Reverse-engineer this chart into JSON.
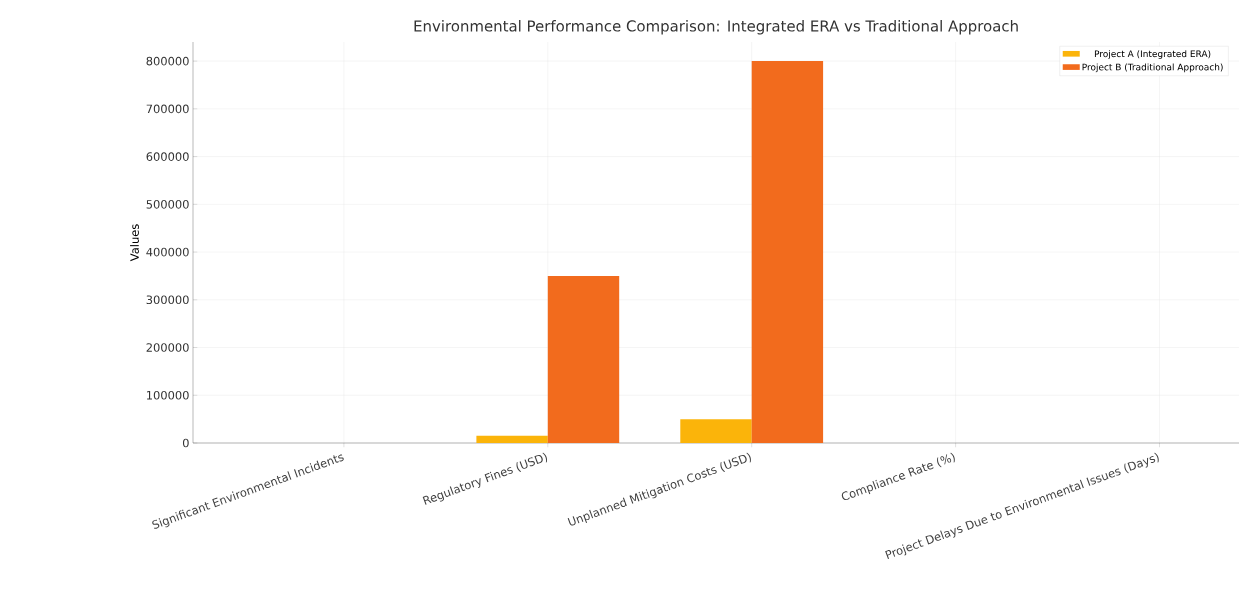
{
  "chart_data": {
    "type": "bar",
    "title": "Environmental Performance Comparison: Integrated ERA vs Traditional Approach",
    "ylabel": "Values",
    "categories": [
      "Significant Environmental Incidents",
      "Regulatory Fines (USD)",
      "Unplanned Mitigation Costs (USD)",
      "Compliance Rate (%)",
      "Project Delays Due to Environmental Issues (Days)"
    ],
    "series": [
      {
        "name": "Project A (Integrated ERA)",
        "color": "#fbb40a",
        "values": [
          0,
          15000,
          50000,
          0,
          0
        ]
      },
      {
        "name": "Project B (Traditional Approach)",
        "color": "#f26b1d",
        "values": [
          0,
          350000,
          800000,
          0,
          0
        ]
      }
    ],
    "ylim": [
      0,
      840000
    ],
    "yticks": [
      0,
      100000,
      200000,
      300000,
      400000,
      500000,
      600000,
      700000,
      800000
    ],
    "grid": true,
    "legend": "top right"
  }
}
